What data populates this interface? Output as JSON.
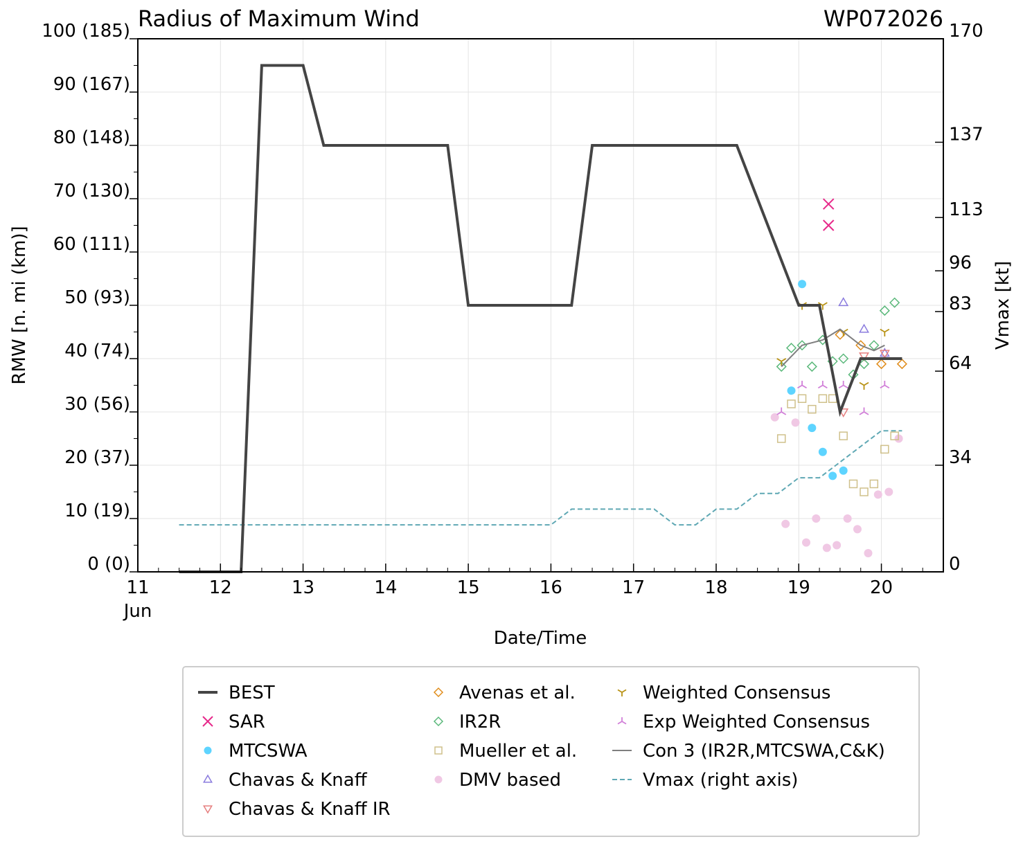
{
  "chart_data": {
    "type": "line",
    "title": "Radius of Maximum Wind",
    "storm_id": "WP072026",
    "xlabel": "Date/Time",
    "ylabel": "RMW [n. mi (km)]",
    "y2label": "Vmax [kt]",
    "x_unit": "days (Jun 2026)",
    "xlim": [
      11,
      20.75
    ],
    "ylim": [
      0,
      100
    ],
    "y2lim": [
      0,
      170
    ],
    "x_ticks": [
      {
        "value": 11,
        "label": "11"
      },
      {
        "value": 12,
        "label": "12"
      },
      {
        "value": 13,
        "label": "13"
      },
      {
        "value": 14,
        "label": "14"
      },
      {
        "value": 15,
        "label": "15"
      },
      {
        "value": 16,
        "label": "16"
      },
      {
        "value": 17,
        "label": "17"
      },
      {
        "value": 18,
        "label": "18"
      },
      {
        "value": 19,
        "label": "19"
      },
      {
        "value": 20,
        "label": "20"
      }
    ],
    "x_month_label": "Jun",
    "y_ticks": [
      {
        "value": 0,
        "label": "0 (0)"
      },
      {
        "value": 10,
        "label": "10 (19)"
      },
      {
        "value": 20,
        "label": "20 (37)"
      },
      {
        "value": 30,
        "label": "30 (56)"
      },
      {
        "value": 40,
        "label": "40 (74)"
      },
      {
        "value": 50,
        "label": "50 (93)"
      },
      {
        "value": 60,
        "label": "60 (111)"
      },
      {
        "value": 70,
        "label": "70 (130)"
      },
      {
        "value": 80,
        "label": "80 (148)"
      },
      {
        "value": 90,
        "label": "90 (167)"
      },
      {
        "value": 100,
        "label": "100 (185)"
      }
    ],
    "y2_ticks": [
      {
        "value": 0,
        "label": "0"
      },
      {
        "value": 34,
        "label": "34"
      },
      {
        "value": 64,
        "label": "64"
      },
      {
        "value": 83,
        "label": "83"
      },
      {
        "value": 96,
        "label": "96"
      },
      {
        "value": 113,
        "label": "113"
      },
      {
        "value": 137,
        "label": "137"
      },
      {
        "value": 170,
        "label": "170"
      }
    ],
    "grid": true,
    "legend_position": "below",
    "series": [
      {
        "name": "BEST",
        "marker": "line-thick",
        "color": "#444444",
        "x": [
          11.5,
          12.25,
          12.5,
          13.0,
          13.25,
          14.75,
          15.0,
          16.25,
          16.5,
          18.25,
          19.0,
          19.25,
          19.5,
          19.75,
          20.25
        ],
        "y": [
          0,
          0,
          95,
          95,
          80,
          80,
          50,
          50,
          80,
          80,
          50,
          50,
          30,
          40,
          40
        ]
      },
      {
        "name": "SAR",
        "marker": "x",
        "color": "#e7298a",
        "x": [
          19.36,
          19.36
        ],
        "y": [
          69,
          65
        ]
      },
      {
        "name": "MTCSWA",
        "marker": "circle",
        "color": "#5ed4ff",
        "x": [
          19.04,
          18.91,
          19.16,
          19.29,
          19.41,
          19.54
        ],
        "y": [
          54,
          34,
          27,
          22.5,
          18,
          19
        ]
      },
      {
        "name": "Chavas & Knaff",
        "marker": "triangle-up",
        "color": "#8a7bde",
        "x": [
          19.54,
          19.79,
          20.04
        ],
        "y": [
          50.5,
          45.5,
          41
        ]
      },
      {
        "name": "Chavas & Knaff IR",
        "marker": "triangle-down",
        "color": "#e67e7e",
        "x": [
          19.54,
          19.79,
          20.04
        ],
        "y": [
          30,
          40.5,
          41
        ]
      },
      {
        "name": "Avenas et al.",
        "marker": "diamond",
        "color": "#e08c1a",
        "x": [
          19.5,
          19.75,
          20.0,
          20.25
        ],
        "y": [
          44.5,
          42.5,
          39,
          39
        ]
      },
      {
        "name": "IR2R",
        "marker": "diamond",
        "color": "#5ab87a",
        "x": [
          18.79,
          18.91,
          19.04,
          19.16,
          19.29,
          19.41,
          19.54,
          19.66,
          19.79,
          19.91,
          20.04,
          20.16
        ],
        "y": [
          38.5,
          42,
          42.5,
          38.5,
          43.5,
          39.5,
          40,
          37,
          39,
          42.5,
          49,
          50.5
        ]
      },
      {
        "name": "Mueller et al.",
        "marker": "square",
        "color": "#cfc08a",
        "x": [
          18.79,
          18.91,
          19.04,
          19.16,
          19.29,
          19.41,
          19.54,
          19.66,
          19.79,
          19.91,
          20.04,
          20.16
        ],
        "y": [
          25,
          31.5,
          32.5,
          30.5,
          32.5,
          32.5,
          25.5,
          16.5,
          15,
          16.5,
          23,
          25.5
        ]
      },
      {
        "name": "DMV based",
        "marker": "circle",
        "color": "#f0c8e4",
        "x": [
          18.71,
          18.84,
          18.96,
          19.09,
          19.21,
          19.34,
          19.46,
          19.59,
          19.71,
          19.84,
          19.96,
          20.09,
          20.21
        ],
        "y": [
          29,
          9,
          28,
          5.5,
          10,
          4.5,
          5,
          10,
          8,
          3.5,
          14.5,
          15,
          25
        ]
      },
      {
        "name": "Weighted Consensus",
        "marker": "tri-down",
        "color": "#b89214",
        "x": [
          18.79,
          19.04,
          19.29,
          19.54,
          19.79,
          20.04
        ],
        "y": [
          39.5,
          50,
          50,
          45,
          35,
          45
        ]
      },
      {
        "name": "Exp Weighted Consensus",
        "marker": "tri-up",
        "color": "#d17fd8",
        "x": [
          18.79,
          19.04,
          19.29,
          19.54,
          19.79,
          20.04
        ],
        "y": [
          30,
          35,
          35,
          35,
          30,
          35
        ]
      },
      {
        "name": "Con 3 (IR2R,MTCSWA,C&K)",
        "marker": "line",
        "color": "#7f7f7f",
        "x": [
          18.79,
          19.04,
          19.29,
          19.5,
          19.75,
          19.91,
          20.04
        ],
        "y": [
          38.5,
          42.5,
          43.5,
          45.5,
          42.5,
          41.5,
          42.5
        ]
      },
      {
        "name": "Vmax (right axis)",
        "marker": "dashed",
        "color": "#5fa8b4",
        "axis": "right",
        "x": [
          11.5,
          16.0,
          16.25,
          17.25,
          17.5,
          17.75,
          18.0,
          18.25,
          18.5,
          18.75,
          19.0,
          19.25,
          19.5,
          19.75,
          20.0,
          20.25
        ],
        "y": [
          15,
          15,
          20,
          20,
          15,
          15,
          20,
          20,
          25,
          25,
          30,
          30,
          35,
          40,
          45,
          45
        ]
      }
    ]
  }
}
